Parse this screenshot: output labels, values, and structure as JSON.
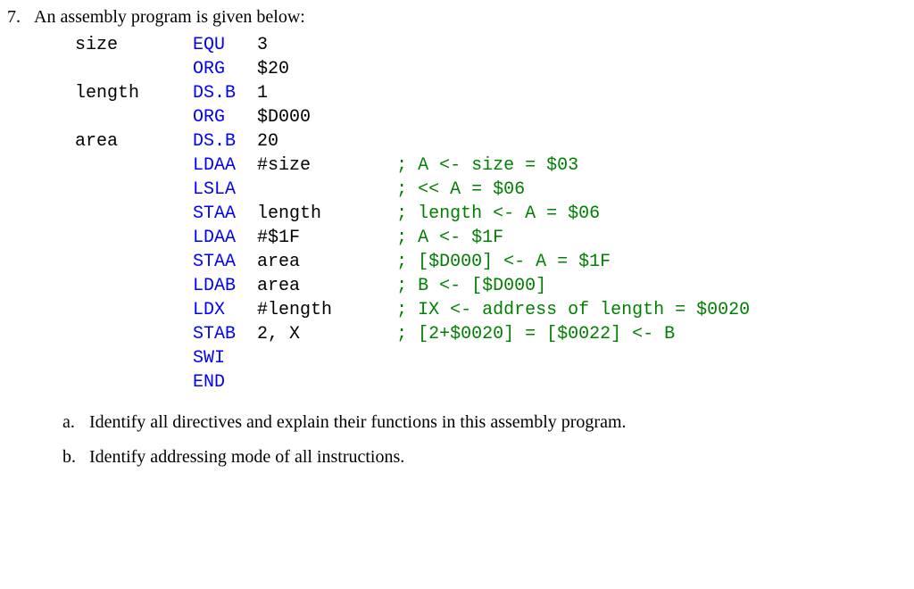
{
  "question_number": "7.",
  "question_text": "An assembly program is given below:",
  "code": {
    "label_color": "#000000",
    "mnemonic_color": "#0000ff",
    "operand_color": "#000000",
    "comment_color": "#008000",
    "font": "Courier New",
    "font_size_pt": 15,
    "lines": [
      {
        "label": "size",
        "mnemonic": "EQU",
        "operand": "3",
        "comment": ""
      },
      {
        "label": "",
        "mnemonic": "ORG",
        "operand": "$20",
        "comment": ""
      },
      {
        "label": "length",
        "mnemonic": "DS.B",
        "operand": "1",
        "comment": ""
      },
      {
        "label": "",
        "mnemonic": "ORG",
        "operand": "$D000",
        "comment": ""
      },
      {
        "label": "area",
        "mnemonic": "DS.B",
        "operand": "20",
        "comment": ""
      },
      {
        "label": "",
        "mnemonic": "LDAA",
        "operand": "#size",
        "comment": "; A <- size = $03"
      },
      {
        "label": "",
        "mnemonic": "LSLA",
        "operand": "",
        "comment": "; << A = $06"
      },
      {
        "label": "",
        "mnemonic": "STAA",
        "operand": "length",
        "comment": "; length <- A = $06"
      },
      {
        "label": "",
        "mnemonic": "LDAA",
        "operand": "#$1F",
        "comment": "; A <- $1F"
      },
      {
        "label": "",
        "mnemonic": "STAA",
        "operand": "area",
        "comment": "; [$D000] <- A = $1F"
      },
      {
        "label": "",
        "mnemonic": "LDAB",
        "operand": "area",
        "comment": "; B <- [$D000]"
      },
      {
        "label": "",
        "mnemonic": "LDX",
        "operand": "#length",
        "comment": "; IX <- address of length = $0020"
      },
      {
        "label": "",
        "mnemonic": "STAB",
        "operand": "2, X",
        "comment": "; [2+$0020] = [$0022] <- B"
      },
      {
        "label": "",
        "mnemonic": "SWI",
        "operand": "",
        "comment": ""
      },
      {
        "label": "",
        "mnemonic": "END",
        "operand": "",
        "comment": ""
      }
    ]
  },
  "columns": {
    "label_width_ch": 11,
    "mnemonic_width_ch": 6,
    "operand_width_ch": 13
  },
  "sub_a_letter": "a.",
  "sub_a_text": "Identify all directives and explain their functions in this assembly program.",
  "sub_b_letter": "b.",
  "sub_b_text": "Identify addressing mode of all instructions."
}
